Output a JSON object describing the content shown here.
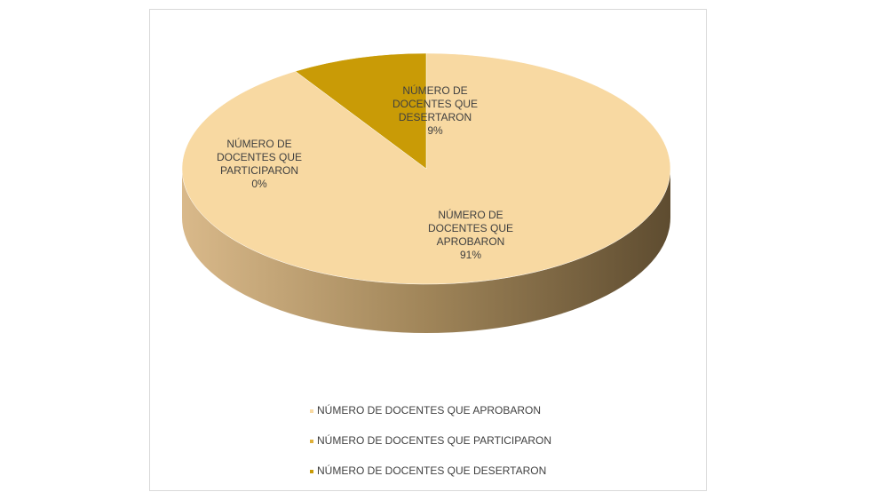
{
  "chart_data": {
    "type": "pie",
    "categories": [
      "NÚMERO DE DOCENTES QUE APROBARON",
      "NÚMERO DE DOCENTES QUE PARTICIPARON",
      "NÚMERO DE DOCENTES QUE DESERTARON"
    ],
    "values": [
      91,
      0,
      9
    ],
    "value_labels": [
      "91%",
      "0%",
      "9%"
    ],
    "colors": [
      "#f8d9a2",
      "#dfb03a",
      "#c99b06"
    ],
    "legend": "bottom"
  }
}
